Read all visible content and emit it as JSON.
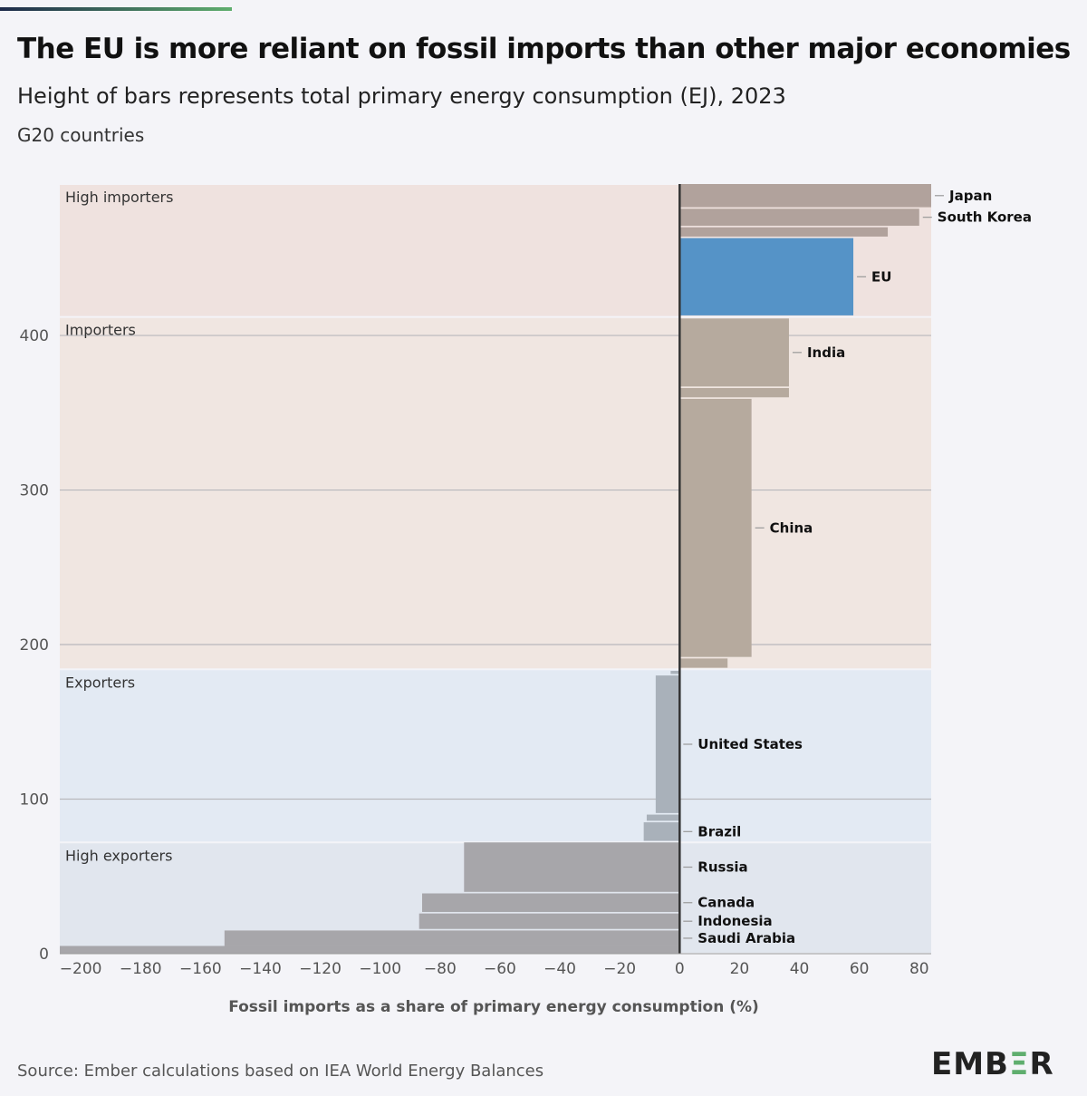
{
  "title": "The EU is more reliant on fossil imports than other major economies",
  "subtitle": "Height of bars represents total primary energy consumption (EJ), 2023",
  "subtitle2": "G20 countries",
  "source": "Source: Ember calculations based on IEA World Energy Balances",
  "logo": "EMBER",
  "chart_data": {
    "type": "bar",
    "variant": "variable-height horizontal bars stacked by cumulative energy consumption",
    "xlabel": "Fossil imports as a share of primary energy consumption (%)",
    "ylabel": "",
    "xlim": [
      -207,
      84
    ],
    "ylim": [
      0,
      498
    ],
    "xticks": [
      -200,
      -180,
      -160,
      -140,
      -120,
      -100,
      -80,
      -60,
      -40,
      -20,
      0,
      20,
      40,
      60,
      80
    ],
    "yticks": [
      0,
      100,
      200,
      300,
      400
    ],
    "grid": "horizontal",
    "regions": [
      {
        "label": "High exporters",
        "from": 0,
        "to": 72,
        "color": "#e1e6ee"
      },
      {
        "label": "Exporters",
        "from": 72,
        "to": 184,
        "color": "#e3eaf3"
      },
      {
        "label": "Importers",
        "from": 184,
        "to": 412,
        "color": "#f0e6e1"
      },
      {
        "label": "High importers",
        "from": 412,
        "to": 498,
        "color": "#efe2df"
      }
    ],
    "bars": [
      {
        "label": "",
        "import_share": -207,
        "y0": 0,
        "y1": 5,
        "color": "#a7a6aa"
      },
      {
        "label": "Saudi Arabia",
        "import_share": -152,
        "y0": 5,
        "y1": 15,
        "color": "#a7a6aa"
      },
      {
        "label": "Indonesia",
        "import_share": -87,
        "y0": 16,
        "y1": 26,
        "color": "#a7a6aa"
      },
      {
        "label": "Canada",
        "import_share": -86,
        "y0": 27,
        "y1": 39,
        "color": "#a7a6aa"
      },
      {
        "label": "Russia",
        "import_share": -72,
        "y0": 40,
        "y1": 72,
        "color": "#a7a6aa"
      },
      {
        "label": "Brazil",
        "import_share": -12,
        "y0": 73,
        "y1": 85,
        "color": "#a9b1ba"
      },
      {
        "label": "",
        "import_share": -11,
        "y0": 86,
        "y1": 90,
        "color": "#a9b1ba"
      },
      {
        "label": "United States",
        "import_share": -8,
        "y0": 91,
        "y1": 180,
        "color": "#a9b1ba"
      },
      {
        "label": "",
        "import_share": -3,
        "y0": 181,
        "y1": 183,
        "color": "#a9b1ba"
      },
      {
        "label": "",
        "import_share": 16,
        "y0": 185,
        "y1": 191,
        "color": "#b6aa9e"
      },
      {
        "label": "China",
        "import_share": 24,
        "y0": 192,
        "y1": 359,
        "color": "#b6aa9e"
      },
      {
        "label": "",
        "import_share": 36.5,
        "y0": 360,
        "y1": 366,
        "color": "#b6aa9e"
      },
      {
        "label": "India",
        "import_share": 36.5,
        "y0": 367,
        "y1": 411,
        "color": "#b6aa9e"
      },
      {
        "label": "EU",
        "import_share": 58,
        "y0": 413,
        "y1": 463,
        "color": "#5593c7"
      },
      {
        "label": "",
        "import_share": 69.5,
        "y0": 464,
        "y1": 470,
        "color": "#b1a29c"
      },
      {
        "label": "South Korea",
        "import_share": 80,
        "y0": 471,
        "y1": 482,
        "color": "#b1a29c"
      },
      {
        "label": "Japan",
        "import_share": 84,
        "y0": 483,
        "y1": 498,
        "color": "#b1a29c"
      }
    ]
  }
}
